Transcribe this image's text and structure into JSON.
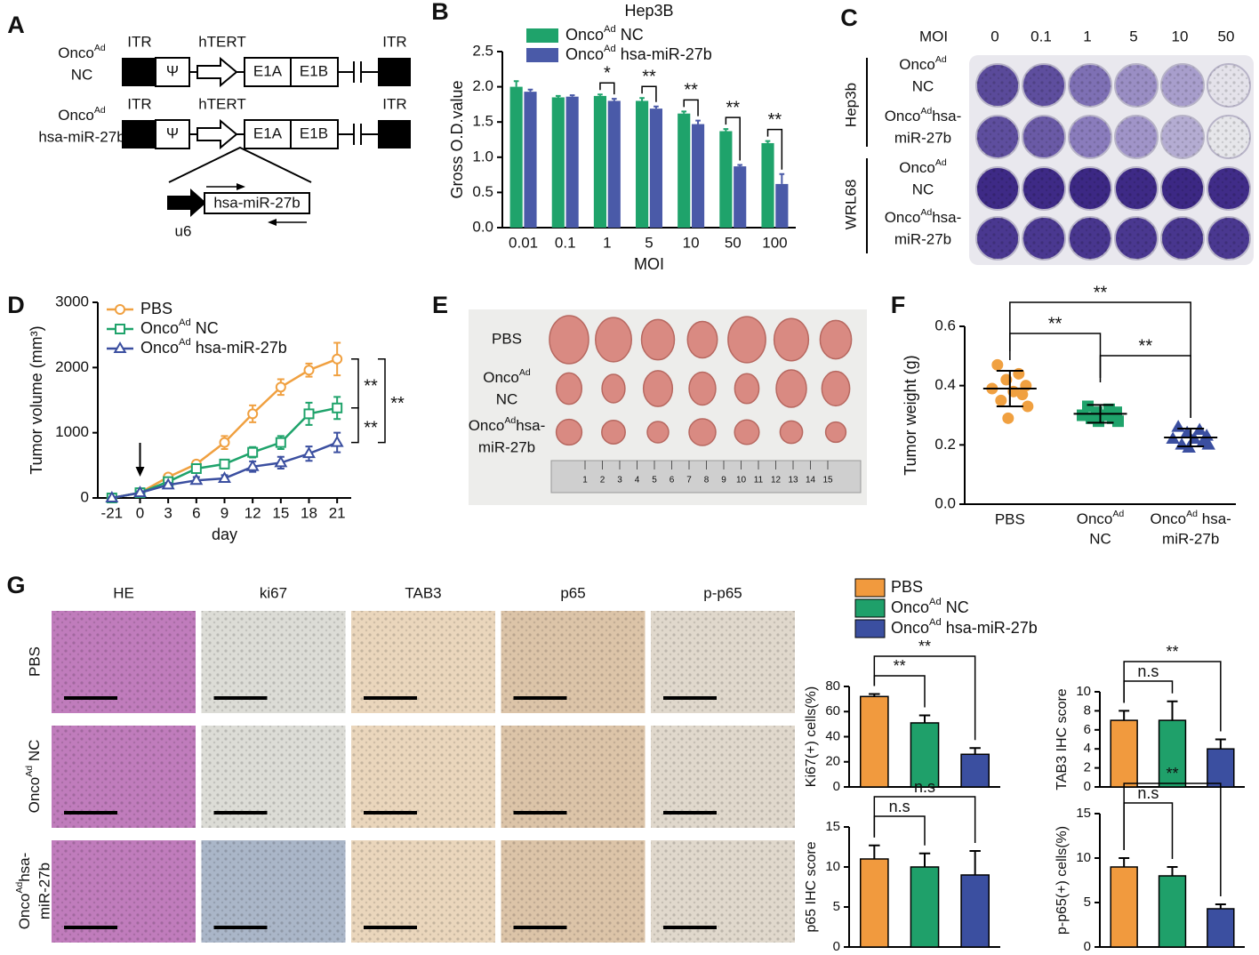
{
  "panel_a": {
    "letter": "A",
    "constructs": [
      {
        "name": [
          [
            "Onco",
            "Ad"
          ],
          "NC"
        ],
        "itr_left": "ITR",
        "psi": "Ψ",
        "promoter": "hTERT",
        "e1a": "E1A",
        "e1b": "E1B",
        "itr_right": "ITR"
      },
      {
        "name": [
          [
            "Onco",
            "Ad"
          ],
          "hsa-miR-27b"
        ],
        "itr_left": "ITR",
        "psi": "Ψ",
        "promoter": "hTERT",
        "e1a": "E1A",
        "e1b": "E1B",
        "itr_right": "ITR"
      }
    ],
    "insert": {
      "gene": "hsa-miR-27b",
      "promoter": "u6"
    }
  },
  "panel_c": {
    "letter": "C",
    "moi_label": "MOI",
    "moi": [
      "0",
      "0.1",
      "1",
      "5",
      "10",
      "50"
    ],
    "cell_lines": [
      "Hep3b",
      "WRL68"
    ],
    "rows": [
      [
        [
          "Onco",
          "Ad"
        ],
        "NC"
      ],
      [
        [
          "Onco",
          "Ad",
          "hsa-"
        ],
        "miR-27b"
      ],
      [
        [
          "Onco",
          "Ad"
        ],
        "NC"
      ],
      [
        [
          "Onco",
          "Ad",
          "hsa-"
        ],
        "miR-27b"
      ]
    ]
  },
  "panel_e": {
    "letter": "E",
    "rows": [
      "PBS",
      [
        [
          "Onco",
          "Ad"
        ],
        "NC"
      ],
      [
        [
          "Onco",
          "Ad",
          "hsa-"
        ],
        "miR-27b"
      ]
    ],
    "ruler": [
      "1",
      "2",
      "3",
      "4",
      "5",
      "6",
      "7",
      "8",
      "9",
      "10",
      "11",
      "12",
      "13",
      "14",
      "15"
    ]
  },
  "panel_g": {
    "letter": "G",
    "columns": [
      "HE",
      "ki67",
      "TAB3",
      "p65",
      "p-p65"
    ],
    "rows": [
      "PBS",
      [
        [
          "Onco",
          "Ad",
          " NC"
        ]
      ],
      [
        [
          "Onco",
          "Ad",
          "hsa-"
        ],
        "miR-27b"
      ]
    ],
    "legend": [
      {
        "name": "PBS",
        "color": "#f19a3e"
      },
      {
        "name": [
          [
            "Onco",
            "Ad",
            " NC"
          ]
        ],
        "color": "#1fa06a"
      },
      {
        "name": [
          [
            "Onco",
            "Ad",
            " hsa-miR-27b"
          ]
        ],
        "color": "#3b4fa0"
      }
    ]
  },
  "chart_data": [
    {
      "type": "bar",
      "letter": "B",
      "title": "Hep3B",
      "xlabel": "MOI",
      "ylabel": "Gross O.D.value",
      "categories": [
        "0.01",
        "0.1",
        "1",
        "5",
        "10",
        "50",
        "100"
      ],
      "ylim": [
        0,
        2.5
      ],
      "yticks": [
        {
          "value": 0,
          "label": "0.0"
        },
        0.5,
        {
          "value": 1,
          "label": "1.0"
        },
        1.5,
        {
          "value": 2,
          "label": "2.0"
        },
        2.5
      ],
      "series": [
        {
          "name": [
            [
              "Onco",
              "Ad",
              " NC"
            ]
          ],
          "color": "#1fa36b",
          "values": [
            2.0,
            1.85,
            1.87,
            1.8,
            1.62,
            1.37,
            1.2
          ],
          "errors": [
            0.08,
            0.02,
            0.02,
            0.04,
            0.03,
            0.03,
            0.03
          ]
        },
        {
          "name": [
            [
              "Onco",
              "Ad",
              " hsa-miR-27b"
            ]
          ],
          "color": "#4a5aa8",
          "values": [
            1.93,
            1.86,
            1.8,
            1.69,
            1.47,
            0.87,
            0.62
          ],
          "errors": [
            0.03,
            0.02,
            0.03,
            0.03,
            0.05,
            0.02,
            0.14
          ]
        }
      ],
      "significance": [
        null,
        null,
        "*",
        "**",
        "**",
        "**",
        "**"
      ]
    },
    {
      "type": "line",
      "letter": "D",
      "xlabel": "day",
      "ylabel": "Tumor volume (mm³)",
      "categories": [
        "-21",
        "0",
        "3",
        "6",
        "9",
        "12",
        "15",
        "18",
        "21"
      ],
      "ylim": [
        0,
        3000
      ],
      "yticks": [
        0,
        1000,
        2000,
        3000
      ],
      "series": [
        {
          "name": "PBS",
          "color": "#f0a040",
          "marker": "circle",
          "values": [
            0,
            80,
            320,
            520,
            850,
            1290,
            1700,
            1960,
            2130
          ],
          "errors": [
            0,
            20,
            40,
            50,
            100,
            130,
            120,
            100,
            250
          ]
        },
        {
          "name": [
            [
              "Onco",
              "Ad",
              " NC"
            ]
          ],
          "color": "#1fa36b",
          "marker": "square",
          "values": [
            0,
            80,
            250,
            450,
            520,
            700,
            850,
            1290,
            1380
          ],
          "errors": [
            0,
            20,
            30,
            40,
            50,
            80,
            100,
            170,
            170
          ]
        },
        {
          "name": [
            [
              "Onco",
              "Ad",
              " hsa-miR-27b"
            ]
          ],
          "color": "#3b4fa0",
          "marker": "triangle",
          "values": [
            0,
            80,
            200,
            270,
            300,
            480,
            540,
            680,
            850
          ],
          "errors": [
            0,
            20,
            30,
            50,
            50,
            80,
            90,
            110,
            150
          ]
        }
      ],
      "significance": [
        "**",
        "**",
        "**"
      ]
    },
    {
      "type": "dot",
      "letter": "F",
      "ylabel": "Tumor weight (g)",
      "categories": [
        "PBS",
        [
          [
            "Onco",
            "Ad"
          ],
          "NC"
        ],
        [
          [
            "Onco",
            "Ad",
            " hsa-"
          ],
          "miR-27b"
        ]
      ],
      "ylim": [
        0,
        0.6
      ],
      "yticks": [
        {
          "value": 0,
          "label": "0.0"
        },
        0.2,
        0.4,
        0.6
      ],
      "groups": [
        {
          "color": "#f0a040",
          "marker": "circle",
          "values": [
            0.47,
            0.44,
            0.42,
            0.4,
            0.39,
            0.38,
            0.37,
            0.35,
            0.33,
            0.29
          ],
          "mean": 0.39,
          "sd": 0.06
        },
        {
          "color": "#1fa36b",
          "marker": "square",
          "values": [
            0.33,
            0.32,
            0.31,
            0.31,
            0.3,
            0.3,
            0.29,
            0.29,
            0.28,
            0.28
          ],
          "mean": 0.305,
          "sd": 0.03
        },
        {
          "color": "#3b4fa0",
          "marker": "triangle",
          "values": [
            0.26,
            0.25,
            0.24,
            0.23,
            0.22,
            0.22,
            0.21,
            0.2,
            0.2,
            0.19
          ],
          "mean": 0.225,
          "sd": 0.03
        }
      ],
      "significance": [
        "**",
        "**",
        "**"
      ]
    },
    {
      "type": "bar",
      "ylabel": "Ki67(+) cells(%)",
      "categories": [
        null,
        null,
        null
      ],
      "values": [
        72,
        51,
        26
      ],
      "errors": [
        2,
        6,
        5
      ],
      "colors": [
        "#f19a3e",
        "#1fa06a",
        "#3b4fa0"
      ],
      "ylim": [
        0,
        80
      ],
      "yticks": [
        0,
        20,
        40,
        60,
        80
      ],
      "significance": [
        "**",
        "**"
      ]
    },
    {
      "type": "bar",
      "ylabel": "TAB3 IHC score",
      "categories": [
        null,
        null,
        null
      ],
      "values": [
        7,
        7,
        4
      ],
      "errors": [
        1,
        2,
        1
      ],
      "colors": [
        "#f19a3e",
        "#1fa06a",
        "#3b4fa0"
      ],
      "ylim": [
        0,
        10
      ],
      "yticks": [
        0,
        2,
        4,
        6,
        8,
        10
      ],
      "significance": [
        "n.s",
        "**"
      ]
    },
    {
      "type": "bar",
      "ylabel": "p65 IHC score",
      "categories": [
        null,
        null,
        null
      ],
      "values": [
        11,
        10,
        9
      ],
      "errors": [
        1.7,
        1.7,
        3
      ],
      "colors": [
        "#f19a3e",
        "#1fa06a",
        "#3b4fa0"
      ],
      "ylim": [
        0,
        15
      ],
      "yticks": [
        0,
        5,
        10,
        15
      ],
      "significance": [
        "n.s",
        "n.s"
      ]
    },
    {
      "type": "bar",
      "ylabel": "p-p65(+) cells(%)",
      "categories": [
        null,
        null,
        null
      ],
      "values": [
        9,
        8,
        4.3
      ],
      "errors": [
        1,
        1,
        0.5
      ],
      "colors": [
        "#f19a3e",
        "#1fa06a",
        "#3b4fa0"
      ],
      "ylim": [
        0,
        15
      ],
      "yticks": [
        0,
        5,
        10,
        15
      ],
      "significance": [
        "n.s",
        "**"
      ]
    }
  ]
}
